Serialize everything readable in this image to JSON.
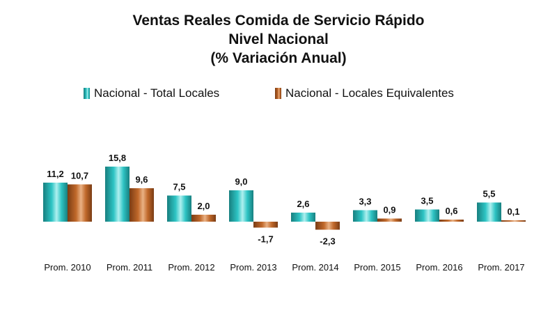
{
  "title_lines": [
    "Ventas Reales Comida de Servicio Rápido",
    "Nivel Nacional",
    "(% Variación Anual)"
  ],
  "colors": {
    "series0": "#2ec4c4",
    "series1": "#c0682a"
  },
  "chart_data": {
    "type": "bar",
    "title": "Ventas Reales Comida de Servicio Rápido Nivel Nacional (% Variación Anual)",
    "categories": [
      "Prom. 2010",
      "Prom. 2011",
      "Prom. 2012",
      "Prom. 2013",
      "Prom. 2014",
      "Prom. 2015",
      "Prom. 2016",
      "Prom. 2017"
    ],
    "series": [
      {
        "name": "Nacional - Total Locales",
        "values": [
          11.2,
          15.8,
          7.5,
          9.0,
          2.6,
          3.3,
          3.5,
          5.5
        ],
        "labels": [
          "11,2",
          "15,8",
          "7,5",
          "9,0",
          "2,6",
          "3,3",
          "3,5",
          "5,5"
        ]
      },
      {
        "name": "Nacional - Locales Equivalentes",
        "values": [
          10.7,
          9.6,
          2.0,
          -1.7,
          -2.3,
          0.9,
          0.6,
          0.1
        ],
        "labels": [
          "10,7",
          "9,6",
          "2,0",
          "-1,7",
          "-2,3",
          "0,9",
          "0,6",
          "0,1"
        ]
      }
    ],
    "legend": "top",
    "grid": false,
    "xlabel": "",
    "ylabel": ""
  }
}
